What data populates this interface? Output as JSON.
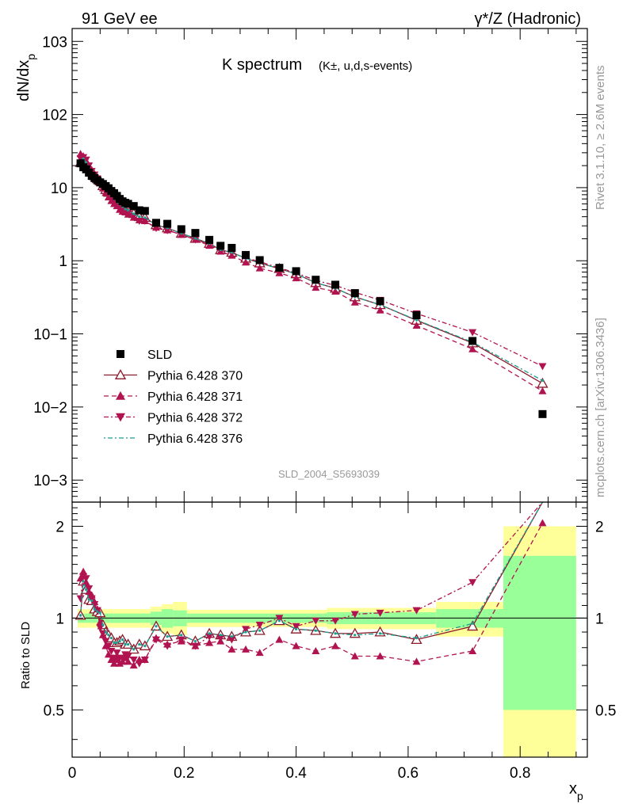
{
  "header": {
    "left": "91 GeV ee",
    "right": "γ*/Z (Hadronic)"
  },
  "side_labels": {
    "rivet": "Rivet 3.1.10, ≥ 2.6M events",
    "mcplots": "mcplots.cern.ch [arXiv:1306.3436]"
  },
  "watermark": "SLD_2004_S5693039",
  "chart_data": {
    "type": "scatter",
    "title_main": "K spectrum",
    "title_sub": "(K±, u,d,s-events)",
    "xlabel": "xp",
    "ylabel": "dN/dxp",
    "ratio_ylabel": "Ratio to SLD",
    "xlim": [
      0,
      0.92
    ],
    "ylim": [
      0.0005,
      1500
    ],
    "ylog": true,
    "ratio_ylim": [
      0.35,
      2.4
    ],
    "legend_position": "bottom-left",
    "x_ticks": [
      "0",
      "0.2",
      "0.4",
      "0.6",
      "0.8"
    ],
    "y_ticks": [
      "10−3",
      "10−2",
      "10−1",
      "1",
      "10",
      "102",
      "103"
    ],
    "ratio_ticks": [
      "0.5",
      "1",
      "2"
    ],
    "x": [
      0.015,
      0.02,
      0.025,
      0.03,
      0.035,
      0.04,
      0.045,
      0.05,
      0.055,
      0.06,
      0.065,
      0.07,
      0.075,
      0.08,
      0.085,
      0.09,
      0.095,
      0.1,
      0.11,
      0.12,
      0.13,
      0.15,
      0.17,
      0.195,
      0.22,
      0.245,
      0.265,
      0.285,
      0.31,
      0.335,
      0.37,
      0.4,
      0.435,
      0.47,
      0.505,
      0.55,
      0.615,
      0.715,
      0.84
    ],
    "series": [
      {
        "name": "SLD",
        "color": "#000000",
        "marker": "square",
        "values": [
          21.5,
          19.0,
          17.8,
          16.0,
          14.5,
          13.5,
          12.6,
          11.8,
          11.2,
          10.5,
          9.8,
          9.0,
          8.4,
          7.7,
          7.0,
          6.5,
          6.2,
          6.0,
          5.6,
          4.9,
          4.8,
          3.3,
          3.2,
          2.7,
          2.4,
          1.93,
          1.6,
          1.5,
          1.2,
          1.02,
          0.8,
          0.72,
          0.55,
          0.47,
          0.36,
          0.28,
          0.18,
          0.08,
          0.008
        ]
      },
      {
        "name": "Pythia 6.428 370",
        "color": "#8b1a2b",
        "marker": "open-triangle",
        "line": "solid",
        "values": [
          22,
          25,
          22,
          18.5,
          16.5,
          14.5,
          13.2,
          12.3,
          10.6,
          9.4,
          8.6,
          7.7,
          7.0,
          6.4,
          5.9,
          5.5,
          5.1,
          4.9,
          4.4,
          4.0,
          3.9,
          3.1,
          2.8,
          2.37,
          2.02,
          1.72,
          1.41,
          1.3,
          1.08,
          0.93,
          0.78,
          0.66,
          0.5,
          0.42,
          0.32,
          0.25,
          0.153,
          0.075,
          0.021
        ]
      },
      {
        "name": "Pythia 6.428 371",
        "color": "#b0134f",
        "marker": "triangle-up",
        "line": "dashed",
        "values": [
          29.0,
          27.0,
          23.3,
          19.5,
          17.3,
          15.3,
          13.5,
          11.5,
          9.8,
          8.5,
          7.4,
          6.6,
          6.0,
          5.6,
          5.0,
          4.7,
          4.6,
          4.3,
          3.9,
          3.6,
          3.5,
          2.85,
          2.62,
          2.27,
          1.94,
          1.61,
          1.34,
          1.18,
          0.95,
          0.79,
          0.68,
          0.58,
          0.43,
          0.38,
          0.27,
          0.21,
          0.13,
          0.062,
          0.0165
        ]
      },
      {
        "name": "Pythia 6.428 372",
        "color": "#b0134f",
        "marker": "triangle-down",
        "line": "dashdot",
        "values": [
          25.0,
          26.0,
          24.0,
          20.0,
          16.8,
          15.0,
          13.3,
          11.0,
          10.0,
          8.8,
          7.9,
          7.0,
          6.2,
          5.9,
          5.2,
          4.8,
          4.7,
          4.5,
          4.1,
          3.5,
          3.5,
          2.8,
          2.6,
          2.3,
          1.95,
          1.68,
          1.38,
          1.28,
          1.1,
          0.97,
          0.8,
          0.68,
          0.54,
          0.46,
          0.37,
          0.29,
          0.19,
          0.105,
          0.036
        ]
      },
      {
        "name": "Pythia 6.428 376",
        "color": "#1a9e8f",
        "marker": "dot",
        "line": "dotdash",
        "values": [
          22,
          25,
          22,
          18.5,
          16.5,
          14.5,
          13.2,
          12.3,
          10.6,
          9.4,
          8.6,
          7.7,
          7.0,
          6.4,
          5.9,
          5.5,
          5.1,
          4.9,
          4.4,
          4.0,
          3.9,
          3.1,
          2.8,
          2.37,
          2.02,
          1.72,
          1.41,
          1.3,
          1.08,
          0.93,
          0.78,
          0.66,
          0.5,
          0.42,
          0.32,
          0.25,
          0.155,
          0.077,
          0.023
        ]
      }
    ],
    "ratio_series": [
      {
        "name": "Pythia 6.428 370",
        "values": [
          1.02,
          1.32,
          1.24,
          1.15,
          1.14,
          1.07,
          1.05,
          1.04,
          0.95,
          0.9,
          0.88,
          0.86,
          0.83,
          0.83,
          0.84,
          0.85,
          0.82,
          0.82,
          0.79,
          0.82,
          0.81,
          0.94,
          0.87,
          0.88,
          0.84,
          0.89,
          0.88,
          0.87,
          0.9,
          0.91,
          0.98,
          0.92,
          0.91,
          0.89,
          0.89,
          0.9,
          0.85,
          0.94,
          2.6
        ]
      },
      {
        "name": "Pythia 6.428 371",
        "values": [
          1.35,
          1.42,
          1.31,
          1.22,
          1.19,
          1.13,
          1.07,
          0.97,
          0.88,
          0.81,
          0.76,
          0.73,
          0.71,
          0.73,
          0.71,
          0.72,
          0.74,
          0.72,
          0.7,
          0.73,
          0.73,
          0.86,
          0.82,
          0.84,
          0.81,
          0.83,
          0.84,
          0.79,
          0.79,
          0.77,
          0.85,
          0.81,
          0.78,
          0.81,
          0.75,
          0.75,
          0.72,
          0.78,
          2.05
        ]
      },
      {
        "name": "Pythia 6.428 372",
        "values": [
          1.16,
          1.37,
          1.35,
          1.25,
          1.16,
          1.11,
          1.06,
          0.93,
          0.89,
          0.84,
          0.81,
          0.78,
          0.74,
          0.77,
          0.74,
          0.74,
          0.76,
          0.75,
          0.73,
          0.71,
          0.73,
          0.85,
          0.81,
          0.85,
          0.81,
          0.87,
          0.86,
          0.85,
          0.92,
          0.95,
          1.0,
          0.94,
          0.98,
          0.98,
          1.03,
          1.04,
          1.06,
          1.31,
          4.5
        ]
      },
      {
        "name": "Pythia 6.428 376",
        "values": [
          1.02,
          1.32,
          1.24,
          1.15,
          1.14,
          1.07,
          1.05,
          1.04,
          0.95,
          0.9,
          0.88,
          0.86,
          0.83,
          0.83,
          0.84,
          0.85,
          0.82,
          0.82,
          0.79,
          0.82,
          0.81,
          0.94,
          0.87,
          0.88,
          0.84,
          0.89,
          0.88,
          0.87,
          0.9,
          0.91,
          0.98,
          0.92,
          0.91,
          0.89,
          0.88,
          0.89,
          0.86,
          0.96,
          2.9
        ]
      }
    ],
    "sld_uncertainty_bands": [
      {
        "x0": 0.01,
        "x1": 0.14,
        "green": [
          0.965,
          1.035
        ],
        "yellow": [
          0.93,
          1.07
        ]
      },
      {
        "x0": 0.14,
        "x1": 0.16,
        "green": [
          0.95,
          1.05
        ],
        "yellow": [
          0.91,
          1.09
        ]
      },
      {
        "x0": 0.16,
        "x1": 0.18,
        "green": [
          0.93,
          1.07
        ],
        "yellow": [
          0.89,
          1.11
        ]
      },
      {
        "x0": 0.18,
        "x1": 0.205,
        "green": [
          0.94,
          1.06
        ],
        "yellow": [
          0.88,
          1.13
        ]
      },
      {
        "x0": 0.205,
        "x1": 0.455,
        "green": [
          0.965,
          1.035
        ],
        "yellow": [
          0.935,
          1.065
        ]
      },
      {
        "x0": 0.455,
        "x1": 0.65,
        "green": [
          0.955,
          1.045
        ],
        "yellow": [
          0.92,
          1.08
        ]
      },
      {
        "x0": 0.65,
        "x1": 0.77,
        "green": [
          0.93,
          1.07
        ],
        "yellow": [
          0.87,
          1.13
        ]
      },
      {
        "x0": 0.77,
        "x1": 0.9,
        "green": [
          0.5,
          1.6
        ],
        "yellow": [
          0.35,
          2.0
        ]
      }
    ]
  }
}
